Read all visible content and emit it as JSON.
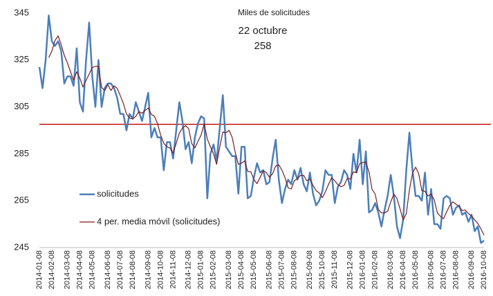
{
  "chart_data": {
    "type": "line",
    "annotations": [
      "Miles de solicitudes",
      "22 octubre",
      "258"
    ],
    "categories": [
      "2014-01-08",
      null,
      null,
      null,
      "2014-02-08",
      null,
      null,
      null,
      null,
      "2014-03-08",
      null,
      null,
      null,
      "2014-04-08",
      null,
      null,
      null,
      "2014-05-08",
      null,
      null,
      null,
      null,
      "2014-06-08",
      null,
      null,
      null,
      "2014-07-08",
      null,
      null,
      null,
      "2014-08-08",
      null,
      null,
      null,
      null,
      "2014-09-08",
      null,
      null,
      null,
      "2014-10-08",
      null,
      null,
      null,
      "2014-11-08",
      null,
      null,
      null,
      null,
      "2014-12-08",
      null,
      null,
      null,
      "2015-01-08",
      null,
      null,
      null,
      "2015-02-08",
      null,
      null,
      null,
      null,
      "2015-03-08",
      null,
      null,
      null,
      "2015-04-08",
      null,
      null,
      null,
      "2015-05-08",
      null,
      null,
      null,
      null,
      "2015-06-08",
      null,
      null,
      null,
      "2015-07-08",
      null,
      null,
      null,
      "2015-08-08",
      null,
      null,
      null,
      null,
      "2015-09-08",
      null,
      null,
      null,
      "2015-10-08",
      null,
      null,
      null,
      "2015-11-08",
      null,
      null,
      null,
      null,
      "2015-12-08",
      null,
      null,
      null,
      "2016-01-08",
      null,
      null,
      null,
      "2016-02-08",
      null,
      null,
      null,
      null,
      "2016-03-08",
      null,
      null,
      null,
      "2016-04-08",
      null,
      null,
      null,
      "2016-05-08",
      null,
      null,
      null,
      null,
      "2016-06-08",
      null,
      null,
      null,
      "2016-07-08",
      null,
      null,
      null,
      "2016-08-08",
      null,
      null,
      null,
      null,
      "2016-09-08",
      null,
      null,
      null,
      "2016-10-08"
    ],
    "series": [
      {
        "name": "solicitudes",
        "color": "#4a7ebb",
        "values": [
          322,
          313,
          325,
          344,
          333,
          331,
          333,
          329,
          315,
          318,
          318,
          314,
          330,
          307,
          303,
          325,
          341,
          318,
          305,
          325,
          305,
          313,
          315,
          315,
          313,
          309,
          302,
          302,
          295,
          302,
          300,
          307,
          303,
          299,
          305,
          311,
          292,
          296,
          292,
          292,
          278,
          290,
          290,
          283,
          295,
          307,
          299,
          287,
          290,
          281,
          292,
          298,
          301,
          300,
          266,
          285,
          289,
          282,
          296,
          310,
          288,
          286,
          284,
          284,
          268,
          288,
          288,
          266,
          267,
          275,
          281,
          277,
          278,
          272,
          273,
          283,
          291,
          274,
          264,
          270,
          274,
          272,
          278,
          274,
          279,
          272,
          269,
          277,
          268,
          263,
          265,
          269,
          278,
          276,
          276,
          264,
          271,
          273,
          278,
          276,
          270,
          285,
          277,
          291,
          272,
          286,
          260,
          261,
          264,
          260,
          254,
          261,
          267,
          276,
          267,
          254,
          249,
          257,
          278,
          294,
          278,
          267,
          267,
          265,
          277,
          259,
          270,
          255,
          255,
          253,
          266,
          267,
          266,
          259,
          262,
          263,
          259,
          260,
          256,
          259,
          252,
          254,
          247,
          248
        ]
      },
      {
        "name": "4 per. media móvil (solicitudes)",
        "color": "#7b1c1c",
        "values": [
          null,
          null,
          null,
          326,
          328.8,
          333.3,
          335.3,
          331.5,
          327,
          323.8,
          320,
          316.3,
          320,
          317.3,
          313.5,
          316.3,
          319,
          321.8,
          322.3,
          322.3,
          313.3,
          312,
          314.5,
          312,
          314,
          313,
          309.8,
          306.5,
          302,
          300.3,
          299.8,
          301,
          303,
          302.3,
          303.5,
          304.5,
          301.8,
          301,
          297.8,
          293,
          289.5,
          288,
          287.5,
          285.3,
          289.5,
          293.8,
          296,
          297,
          295.8,
          289.3,
          287.5,
          290.3,
          293,
          297.8,
          291.3,
          288,
          285,
          280.5,
          288,
          294.3,
          294,
          295,
          292,
          285.5,
          280.5,
          281,
          282,
          277.5,
          277.3,
          274,
          272.3,
          275,
          277.8,
          277,
          275,
          276.5,
          279.8,
          280.3,
          278,
          274.8,
          270.5,
          270,
          273.5,
          274.5,
          275.8,
          275.8,
          273.5,
          274.3,
          271.5,
          269.3,
          268.3,
          266.3,
          268.8,
          272,
          274.8,
          273.5,
          271.8,
          271,
          271.5,
          274.5,
          274.3,
          277.3,
          277,
          280.8,
          281.3,
          281.5,
          277.3,
          269.8,
          267.8,
          261.3,
          259.8,
          259.8,
          260.5,
          264.5,
          267.8,
          266,
          261.5,
          256.8,
          259.5,
          269.5,
          276.8,
          279.3,
          276.5,
          269.3,
          269,
          267,
          267.8,
          265.3,
          259.8,
          258.3,
          257.3,
          260.3,
          263,
          264.5,
          263.5,
          262.5,
          260.8,
          261,
          259.5,
          258.5,
          256.8,
          255.3,
          253,
          250.3
        ]
      }
    ],
    "reference_line": {
      "value": 297.6,
      "color": "#c00000"
    },
    "ylim": [
      245,
      345
    ],
    "yticks": [
      245,
      265,
      285,
      305,
      325,
      345
    ],
    "grid": false,
    "legend": "left"
  }
}
